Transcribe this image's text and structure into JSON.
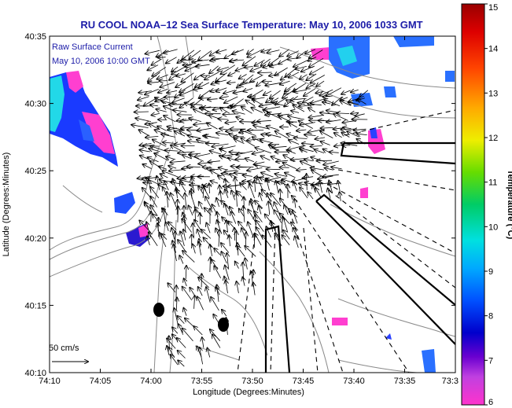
{
  "title": "RU COOL  NOAA–12  Sea Surface Temperature:  May 10, 2006 1033 GMT",
  "annotation": {
    "line1": "Raw Surface Current",
    "line2": "May 10, 2006 10:00 GMT"
  },
  "scale_label": "50 cm/s",
  "axes": {
    "xlabel": "Longitude (Degrees:Minutes)",
    "ylabel": "Latitude (Degrees:Minutes)",
    "xticks": [
      "74:10",
      "74:05",
      "74:00",
      "73:55",
      "73:50",
      "73:45",
      "73:40",
      "73:35",
      "73:3"
    ],
    "yticks": [
      "40:35",
      "40:30",
      "40:25",
      "40:20",
      "40:15",
      "40:10"
    ]
  },
  "colorbar": {
    "label": "Temperature (°C)",
    "ticks": [
      "15",
      "14",
      "13",
      "12",
      "11",
      "10",
      "9",
      "8",
      "7",
      "6"
    ],
    "min": 6,
    "max": 15
  },
  "colors": {
    "title": "#1c1ca8",
    "land_contour": "#8a8a8a",
    "vector": "#000000"
  }
}
